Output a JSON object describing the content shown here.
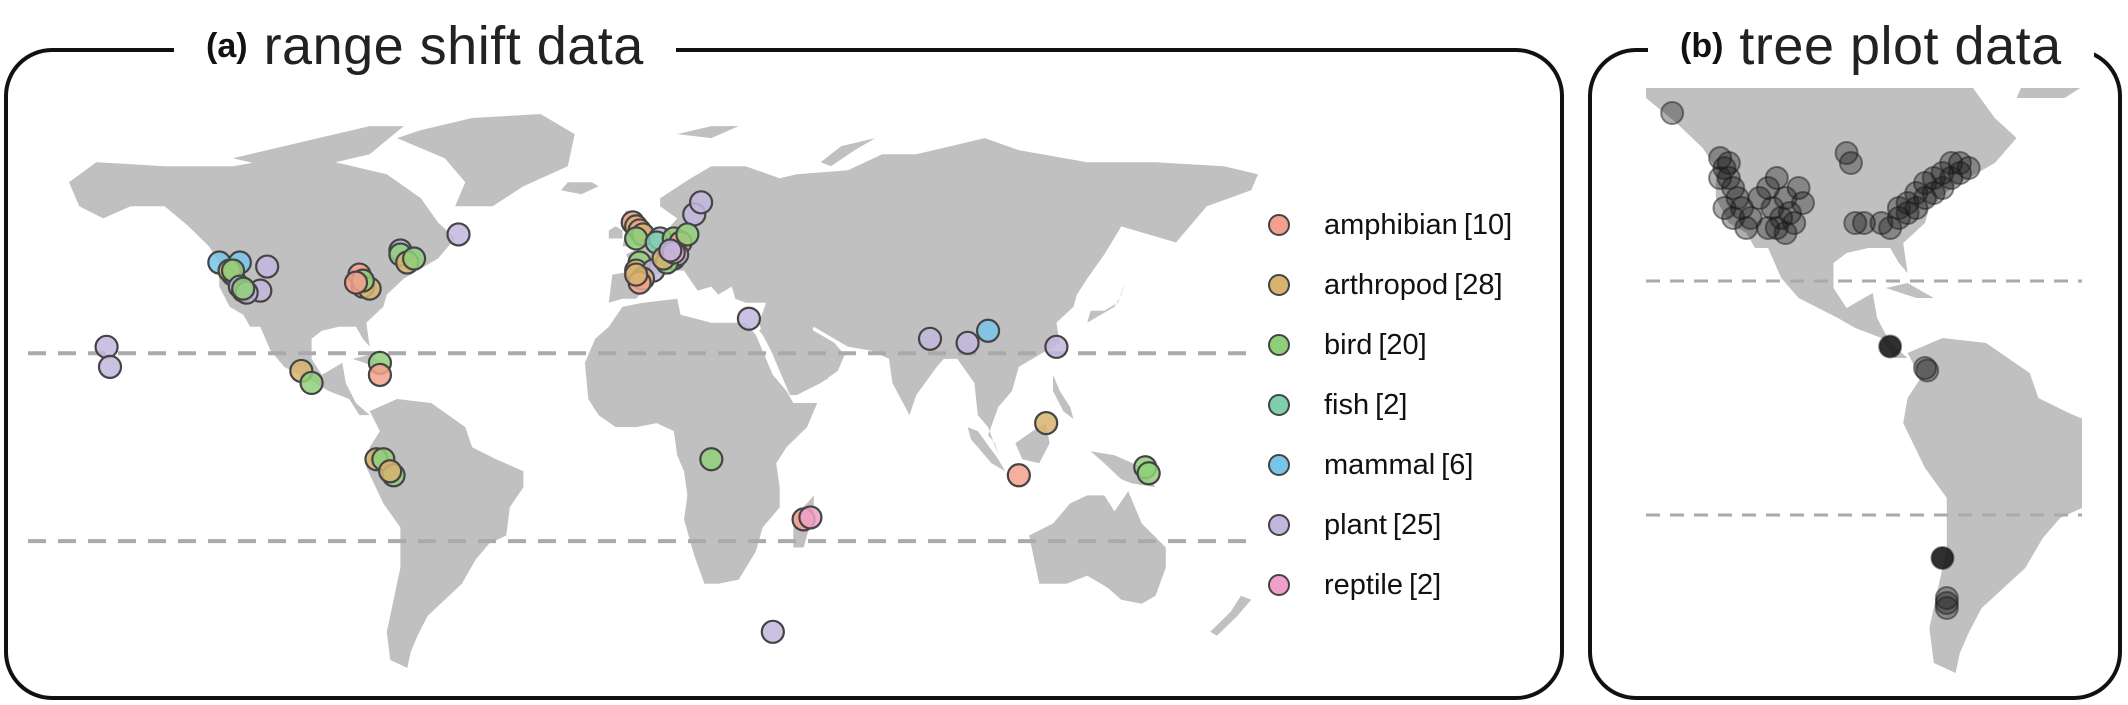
{
  "panels": {
    "a": {
      "letter": "(a)",
      "title": "range shift data"
    },
    "b": {
      "letter": "(b)",
      "title": "tree plot data"
    }
  },
  "legend": [
    {
      "label": "amphibian",
      "count": "[10]",
      "color": "#f4a08c"
    },
    {
      "label": "arthropod",
      "count": "[28]",
      "color": "#d7b36e"
    },
    {
      "label": "bird",
      "count": "[20]",
      "color": "#8fcf7a"
    },
    {
      "label": "fish",
      "count": "[2]",
      "color": "#7dcfae"
    },
    {
      "label": "mammal",
      "count": "[6]",
      "color": "#78c4ea"
    },
    {
      "label": "plant",
      "count": "[25]",
      "color": "#c2b6de"
    },
    {
      "label": "reptile",
      "count": "[2]",
      "color": "#f0a0c8"
    }
  ],
  "colors": {
    "land": "#c0c0c0",
    "frame": "#111111",
    "dashed": "#aaaaaa",
    "marker_edge": "#444444",
    "tree_plot": "#1a1a1a"
  },
  "map_a": {
    "dashed_lines_lat": [
      23.4,
      -23.4
    ],
    "points": [
      {
        "taxon": "mammal",
        "lon": -124,
        "lat": 46
      },
      {
        "taxon": "mammal",
        "lon": -120,
        "lat": 43
      },
      {
        "taxon": "mammal",
        "lon": -118,
        "lat": 46
      },
      {
        "taxon": "arthropod",
        "lon": -121,
        "lat": 44
      },
      {
        "taxon": "bird",
        "lon": -120,
        "lat": 44
      },
      {
        "taxon": "plant",
        "lon": -110,
        "lat": 45
      },
      {
        "taxon": "plant",
        "lon": -118,
        "lat": 40
      },
      {
        "taxon": "plant",
        "lon": -112,
        "lat": 39
      },
      {
        "taxon": "reptile",
        "lon": -117,
        "lat": 39
      },
      {
        "taxon": "plant",
        "lon": -116,
        "lat": 38.5
      },
      {
        "taxon": "bird",
        "lon": -117,
        "lat": 39.5
      },
      {
        "taxon": "amphibian",
        "lon": -83,
        "lat": 43
      },
      {
        "taxon": "amphibian",
        "lon": -82,
        "lat": 40
      },
      {
        "taxon": "arthropod",
        "lon": -80,
        "lat": 39.5
      },
      {
        "taxon": "bird",
        "lon": -82,
        "lat": 41.5
      },
      {
        "taxon": "amphibian",
        "lon": -84,
        "lat": 41
      },
      {
        "taxon": "plant",
        "lon": -71,
        "lat": 49
      },
      {
        "taxon": "bird",
        "lon": -71,
        "lat": 48
      },
      {
        "taxon": "arthropod",
        "lon": -69,
        "lat": 46
      },
      {
        "taxon": "bird",
        "lon": -67,
        "lat": 47
      },
      {
        "taxon": "plant",
        "lon": -54,
        "lat": 53
      },
      {
        "taxon": "plant",
        "lon": -157,
        "lat": 25
      },
      {
        "taxon": "plant",
        "lon": -156,
        "lat": 20
      },
      {
        "taxon": "arthropod",
        "lon": -100,
        "lat": 19
      },
      {
        "taxon": "bird",
        "lon": -97,
        "lat": 16
      },
      {
        "taxon": "bird",
        "lon": -77,
        "lat": 21
      },
      {
        "taxon": "amphibian",
        "lon": -77,
        "lat": 18
      },
      {
        "taxon": "arthropod",
        "lon": -78,
        "lat": -3
      },
      {
        "taxon": "bird",
        "lon": -76,
        "lat": -3
      },
      {
        "taxon": "bird",
        "lon": -73,
        "lat": -7
      },
      {
        "taxon": "arthropod",
        "lon": -74,
        "lat": -6
      },
      {
        "taxon": "amphibian",
        "lon": -3,
        "lat": 56
      },
      {
        "taxon": "arthropod",
        "lon": -2,
        "lat": 55
      },
      {
        "taxon": "amphibian",
        "lon": -1,
        "lat": 54
      },
      {
        "taxon": "arthropod",
        "lon": 0,
        "lat": 53
      },
      {
        "taxon": "bird",
        "lon": -2,
        "lat": 52
      },
      {
        "taxon": "plant",
        "lon": 5,
        "lat": 52
      },
      {
        "taxon": "fish",
        "lon": 4,
        "lat": 51
      },
      {
        "taxon": "bird",
        "lon": 9,
        "lat": 52
      },
      {
        "taxon": "amphibian",
        "lon": 11,
        "lat": 51
      },
      {
        "taxon": "plant",
        "lon": 15,
        "lat": 58
      },
      {
        "taxon": "plant",
        "lon": 17,
        "lat": 61
      },
      {
        "taxon": "bird",
        "lon": 13,
        "lat": 53
      },
      {
        "taxon": "bird",
        "lon": -1,
        "lat": 46
      },
      {
        "taxon": "arthropod",
        "lon": -2,
        "lat": 44
      },
      {
        "taxon": "plant",
        "lon": 3,
        "lat": 44
      },
      {
        "taxon": "arthropod",
        "lon": 0,
        "lat": 42
      },
      {
        "taxon": "amphibian",
        "lon": -1,
        "lat": 41
      },
      {
        "taxon": "arthropod",
        "lon": -2,
        "lat": 43
      },
      {
        "taxon": "fish",
        "lon": 9,
        "lat": 47
      },
      {
        "taxon": "plant",
        "lon": 10,
        "lat": 48
      },
      {
        "taxon": "bird",
        "lon": 7,
        "lat": 46
      },
      {
        "taxon": "arthropod",
        "lon": 6,
        "lat": 47
      },
      {
        "taxon": "reptile",
        "lon": 9,
        "lat": 48.5
      },
      {
        "taxon": "plant",
        "lon": 8,
        "lat": 49
      },
      {
        "taxon": "plant",
        "lon": 31,
        "lat": 32
      },
      {
        "taxon": "plant",
        "lon": 84,
        "lat": 27
      },
      {
        "taxon": "plant",
        "lon": 95,
        "lat": 26
      },
      {
        "taxon": "mammal",
        "lon": 101,
        "lat": 29
      },
      {
        "taxon": "plant",
        "lon": 121,
        "lat": 25
      },
      {
        "taxon": "arthropod",
        "lon": 118,
        "lat": 6
      },
      {
        "taxon": "amphibian",
        "lon": 110,
        "lat": -7
      },
      {
        "taxon": "bird",
        "lon": 147,
        "lat": -5
      },
      {
        "taxon": "bird",
        "lon": 148,
        "lat": -6.5
      },
      {
        "taxon": "bird",
        "lon": 20,
        "lat": -3
      },
      {
        "taxon": "amphibian",
        "lon": 47,
        "lat": -18
      },
      {
        "taxon": "reptile",
        "lon": 49,
        "lat": -17.5
      },
      {
        "taxon": "plant",
        "lon": 38,
        "lat": -46
      }
    ]
  },
  "map_b": {
    "dashed_lines_lat": [
      23.4,
      -23.4
    ],
    "points": [
      {
        "lon": -134,
        "lat": 57
      },
      {
        "lon": -123,
        "lat": 48
      },
      {
        "lon": -122,
        "lat": 46
      },
      {
        "lon": -121,
        "lat": 44
      },
      {
        "lon": -120,
        "lat": 42
      },
      {
        "lon": -119,
        "lat": 40
      },
      {
        "lon": -118,
        "lat": 38
      },
      {
        "lon": -116,
        "lat": 36
      },
      {
        "lon": -114,
        "lat": 40
      },
      {
        "lon": -112,
        "lat": 42
      },
      {
        "lon": -110,
        "lat": 44
      },
      {
        "lon": -108,
        "lat": 40
      },
      {
        "lon": -107,
        "lat": 37
      },
      {
        "lon": -106,
        "lat": 35
      },
      {
        "lon": -109,
        "lat": 36
      },
      {
        "lon": -111,
        "lat": 38
      },
      {
        "lon": -105,
        "lat": 42
      },
      {
        "lon": -104,
        "lat": 39
      },
      {
        "lon": -122,
        "lat": 38
      },
      {
        "lon": -120,
        "lat": 36
      },
      {
        "lon": -117,
        "lat": 34
      },
      {
        "lon": -112,
        "lat": 34
      },
      {
        "lon": -110,
        "lat": 34
      },
      {
        "lon": -108,
        "lat": 33
      },
      {
        "lon": -123,
        "lat": 44
      },
      {
        "lon": -121,
        "lat": 47
      },
      {
        "lon": -94,
        "lat": 49
      },
      {
        "lon": -93,
        "lat": 47
      },
      {
        "lon": -92,
        "lat": 35
      },
      {
        "lon": -90,
        "lat": 35
      },
      {
        "lon": -86,
        "lat": 35
      },
      {
        "lon": -82,
        "lat": 36
      },
      {
        "lon": -80,
        "lat": 37
      },
      {
        "lon": -78,
        "lat": 38
      },
      {
        "lon": -76,
        "lat": 40
      },
      {
        "lon": -74,
        "lat": 41
      },
      {
        "lon": -72,
        "lat": 42
      },
      {
        "lon": -70,
        "lat": 44
      },
      {
        "lon": -68,
        "lat": 45
      },
      {
        "lon": -66,
        "lat": 46
      },
      {
        "lon": -84,
        "lat": 34
      },
      {
        "lon": -80,
        "lat": 39
      },
      {
        "lon": -78,
        "lat": 41
      },
      {
        "lon": -76,
        "lat": 43
      },
      {
        "lon": -74,
        "lat": 44
      },
      {
        "lon": -72,
        "lat": 45
      },
      {
        "lon": -82,
        "lat": 38
      },
      {
        "lon": -70,
        "lat": 47
      },
      {
        "lon": -68,
        "lat": 47
      },
      {
        "lon": -84,
        "lat": 10.3,
        "dark": true
      },
      {
        "lon": -76,
        "lat": 6
      },
      {
        "lon": -75.5,
        "lat": 5.5
      },
      {
        "lon": -72,
        "lat": -32,
        "dark": true
      },
      {
        "lon": -71,
        "lat": -40
      },
      {
        "lon": -71,
        "lat": -41
      },
      {
        "lon": -71,
        "lat": -42
      }
    ]
  }
}
